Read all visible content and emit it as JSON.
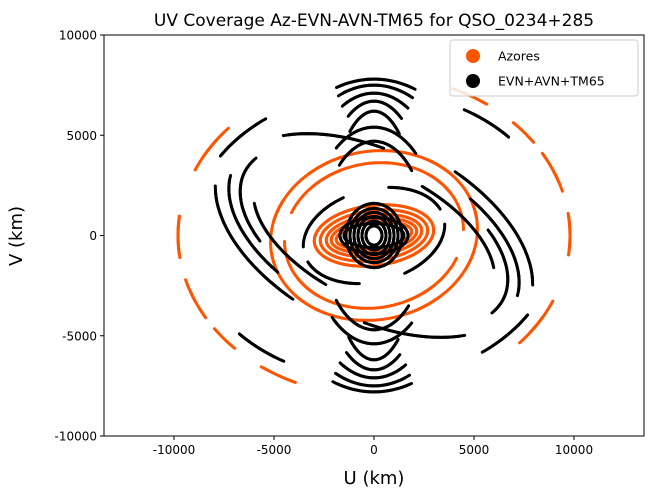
{
  "chart_data": {
    "type": "scatter",
    "title": "UV Coverage Az-EVN-AVN-TM65 for QSO_0234+285",
    "xlabel": "U (km)",
    "ylabel": "V (km)",
    "xlim": [
      -13500,
      13500
    ],
    "ylim": [
      -10000,
      10000
    ],
    "x_ticks": [
      -10000,
      -5000,
      0,
      5000,
      10000
    ],
    "y_ticks": [
      -10000,
      -5000,
      0,
      5000,
      10000
    ],
    "x_tick_labels": [
      "-10000",
      "-5000",
      "0",
      "5000",
      "10000"
    ],
    "y_tick_labels": [
      "-10000",
      "-5000",
      "0",
      "5000",
      "10000"
    ],
    "grid": false,
    "legend_position": "top-right",
    "series": [
      {
        "name": "Azores",
        "color": "#ff5500",
        "tracks": [
          {
            "a": 9800,
            "b": 8000,
            "ang": 0,
            "arcs": [
              [
                -0.12,
                0.12
              ],
              [
                0.28,
                0.42
              ],
              [
                0.62,
                0.78
              ],
              [
                2.5,
                2.72
              ],
              [
                3.02,
                3.28
              ],
              [
                3.5,
                3.68
              ],
              [
                4.1,
                4.3
              ],
              [
                5.55,
                5.75
              ]
            ]
          },
          {
            "a": 5200,
            "b": 4200,
            "ang": 0.18,
            "arcs": [
              [
                0.0,
                0.9
              ],
              [
                1.2,
                2.1
              ],
              [
                2.5,
                3.3
              ],
              [
                3.7,
                4.5
              ],
              [
                4.9,
                5.9
              ]
            ]
          },
          {
            "a": 4500,
            "b": 3600,
            "ang": 0.18,
            "arcs": [
              [
                0.4,
                1.3
              ],
              [
                1.8,
                2.6
              ],
              [
                3.0,
                3.9
              ],
              [
                4.4,
                5.3
              ]
            ]
          },
          {
            "a": 3000,
            "b": 1500,
            "ang": 0.12,
            "arcs": [
              [
                0,
                6.28
              ]
            ]
          },
          {
            "a": 2700,
            "b": 1250,
            "ang": 0.12,
            "arcs": [
              [
                0,
                6.28
              ]
            ]
          },
          {
            "a": 2400,
            "b": 1020,
            "ang": 0.12,
            "arcs": [
              [
                0,
                6.28
              ]
            ]
          },
          {
            "a": 2150,
            "b": 820,
            "ang": 0.12,
            "arcs": [
              [
                0,
                6.28
              ]
            ]
          },
          {
            "a": 1900,
            "b": 640,
            "ang": 0.12,
            "arcs": [
              [
                0,
                6.28
              ]
            ]
          }
        ]
      },
      {
        "name": "EVN+AVN+TM65",
        "color": "#000000",
        "tracks": [
          {
            "a": 8500,
            "b": 4800,
            "ang": -0.45,
            "arcs": [
              [
                0.3,
                1.3
              ],
              [
                3.4,
                4.4
              ]
            ]
          },
          {
            "a": 7800,
            "b": 4200,
            "ang": -0.45,
            "arcs": [
              [
                0.1,
                1.1
              ],
              [
                1.8,
                2.5
              ],
              [
                3.3,
                4.2
              ],
              [
                4.9,
                5.6
              ]
            ]
          },
          {
            "a": 7200,
            "b": 3800,
            "ang": -0.45,
            "arcs": [
              [
                -0.2,
                0.8
              ],
              [
                2.9,
                3.9
              ]
            ]
          },
          {
            "a": 6500,
            "b": 3300,
            "ang": -0.45,
            "arcs": [
              [
                0.4,
                1.4
              ],
              [
                3.5,
                4.5
              ]
            ]
          },
          {
            "a": 5800,
            "b": 7800,
            "ang": 0,
            "arcs": [
              [
                1.25,
                1.9
              ],
              [
                4.35,
                5.0
              ]
            ]
          },
          {
            "a": 4800,
            "b": 7500,
            "ang": 0,
            "arcs": [
              [
                1.2,
                1.95
              ],
              [
                4.3,
                5.05
              ]
            ]
          },
          {
            "a": 3800,
            "b": 7100,
            "ang": 0,
            "arcs": [
              [
                1.15,
                2.0
              ],
              [
                4.25,
                5.1
              ]
            ]
          },
          {
            "a": 2800,
            "b": 6700,
            "ang": 0,
            "arcs": [
              [
                1.1,
                2.05
              ],
              [
                4.2,
                5.15
              ]
            ]
          },
          {
            "a": 2200,
            "b": 6200,
            "ang": 0,
            "arcs": [
              [
                1.0,
                2.15
              ],
              [
                4.1,
                5.25
              ]
            ]
          },
          {
            "a": 3200,
            "b": 5400,
            "ang": 0,
            "arcs": [
              [
                0.9,
                2.2
              ],
              [
                4.0,
                5.3
              ]
            ]
          },
          {
            "a": 2600,
            "b": 4700,
            "ang": 0,
            "arcs": [
              [
                0.8,
                2.3
              ],
              [
                3.9,
                5.4
              ]
            ]
          },
          {
            "a": 3600,
            "b": 2300,
            "ang": 0.25,
            "arcs": [
              [
                0.2,
                1.2
              ],
              [
                2.0,
                3.0
              ],
              [
                3.4,
                4.3
              ],
              [
                5.0,
                5.9
              ]
            ]
          },
          {
            "a": 9200,
            "b": 7200,
            "ang": 0,
            "arcs": [
              [
                0.75,
                1.0
              ],
              [
                2.2,
                2.55
              ],
              [
                3.9,
                4.2
              ],
              [
                5.4,
                5.7
              ]
            ]
          },
          {
            "a": 1400,
            "b": 1600,
            "ang": 0,
            "arcs": [
              [
                0,
                6.28
              ]
            ]
          },
          {
            "a": 1200,
            "b": 1350,
            "ang": 0,
            "arcs": [
              [
                0,
                6.28
              ]
            ]
          },
          {
            "a": 1000,
            "b": 1150,
            "ang": 0,
            "arcs": [
              [
                0,
                6.28
              ]
            ]
          },
          {
            "a": 800,
            "b": 950,
            "ang": 0,
            "arcs": [
              [
                0,
                6.28
              ]
            ]
          },
          {
            "a": 600,
            "b": 720,
            "ang": 0,
            "arcs": [
              [
                0,
                6.28
              ]
            ]
          },
          {
            "a": 400,
            "b": 480,
            "ang": 0,
            "arcs": [
              [
                0,
                6.28
              ]
            ]
          },
          {
            "a": 1700,
            "b": 900,
            "ang": 0,
            "arcs": [
              [
                0,
                6.28
              ]
            ]
          },
          {
            "a": 1500,
            "b": 600,
            "ang": 0,
            "arcs": [
              [
                0,
                6.28
              ]
            ]
          }
        ]
      }
    ]
  }
}
